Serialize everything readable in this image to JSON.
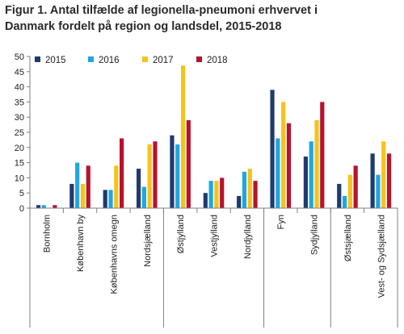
{
  "title": {
    "line1": "Figur 1. Antal tilfælde af legionella-pneumoni erhvervet i",
    "line2": "Danmark fordelt på region og landsdel, 2015-2018"
  },
  "chart_data": {
    "type": "bar",
    "categories": [
      "Bornholm",
      "København by",
      "Københavns omegn",
      "Nordsjælland",
      "Østjylland",
      "Vestjylland",
      "Nordjylland",
      "Fyn",
      "Sydjylland",
      "Østsjælland",
      "Vest- og Sydsjælland"
    ],
    "series": [
      {
        "name": "2015",
        "color": "#1f3a6e",
        "values": [
          1,
          8,
          6,
          13,
          24,
          5,
          4,
          39,
          17,
          8,
          18
        ]
      },
      {
        "name": "2016",
        "color": "#1fa7e0",
        "values": [
          1,
          15,
          6,
          7,
          21,
          9,
          12,
          23,
          22,
          4,
          11
        ]
      },
      {
        "name": "2017",
        "color": "#f7c21b",
        "values": [
          0,
          8,
          14,
          21,
          47,
          9,
          13,
          35,
          29,
          11,
          22
        ]
      },
      {
        "name": "2018",
        "color": "#b7132e",
        "values": [
          1,
          14,
          23,
          22,
          29,
          10,
          9,
          28,
          35,
          14,
          18
        ]
      }
    ],
    "ylim": [
      0,
      50
    ],
    "yticks": [
      "0",
      "5",
      "10",
      "15",
      "20",
      "25",
      "30",
      "35",
      "40",
      "45",
      "50"
    ],
    "legend_position": "top-left",
    "grid": false,
    "group_separators": [
      4,
      7
    ]
  }
}
